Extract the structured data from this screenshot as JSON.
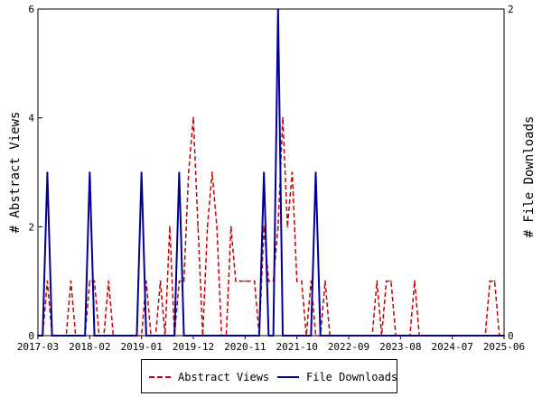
{
  "chart_data": {
    "type": "line",
    "x_tick_labels": [
      "2017-03",
      "2018-02",
      "2019-01",
      "2019-12",
      "2020-11",
      "2021-10",
      "2022-09",
      "2023-08",
      "2024-07",
      "2025-06"
    ],
    "x_range_months": [
      "2017-03",
      "2025-06"
    ],
    "left_axis": {
      "label": "# Abstract Views",
      "ticks": [
        "0",
        "2",
        "4",
        "6"
      ],
      "range": [
        0,
        6
      ]
    },
    "right_axis": {
      "label": "# File Downloads",
      "ticks": [
        "0",
        "2"
      ],
      "range": [
        0,
        2
      ]
    },
    "grid": false,
    "legend_position": "bottom",
    "series": [
      {
        "name": "Abstract Views",
        "axis": "left",
        "color": "#cc0000",
        "style": "dashed",
        "points": [
          [
            "2017-03",
            0
          ],
          [
            "2017-04",
            0
          ],
          [
            "2017-05",
            1
          ],
          [
            "2017-06",
            0
          ],
          [
            "2017-07",
            0
          ],
          [
            "2017-08",
            0
          ],
          [
            "2017-09",
            0
          ],
          [
            "2017-10",
            1
          ],
          [
            "2017-11",
            0
          ],
          [
            "2017-12",
            0
          ],
          [
            "2018-01",
            0
          ],
          [
            "2018-02",
            1
          ],
          [
            "2018-03",
            1
          ],
          [
            "2018-04",
            0
          ],
          [
            "2018-05",
            0
          ],
          [
            "2018-06",
            1
          ],
          [
            "2018-07",
            0
          ],
          [
            "2018-08",
            0
          ],
          [
            "2018-09",
            0
          ],
          [
            "2018-10",
            0
          ],
          [
            "2018-11",
            0
          ],
          [
            "2018-12",
            0
          ],
          [
            "2019-01",
            0
          ],
          [
            "2019-02",
            1
          ],
          [
            "2019-03",
            0
          ],
          [
            "2019-04",
            0
          ],
          [
            "2019-05",
            1
          ],
          [
            "2019-06",
            0
          ],
          [
            "2019-07",
            2
          ],
          [
            "2019-08",
            0
          ],
          [
            "2019-09",
            1
          ],
          [
            "2019-10",
            1
          ],
          [
            "2019-11",
            3
          ],
          [
            "2019-12",
            4
          ],
          [
            "2020-01",
            2
          ],
          [
            "2020-02",
            0
          ],
          [
            "2020-03",
            2
          ],
          [
            "2020-04",
            3
          ],
          [
            "2020-05",
            2
          ],
          [
            "2020-06",
            0
          ],
          [
            "2020-07",
            0
          ],
          [
            "2020-08",
            2
          ],
          [
            "2020-09",
            1
          ],
          [
            "2020-10",
            1
          ],
          [
            "2020-11",
            1
          ],
          [
            "2020-12",
            1
          ],
          [
            "2021-01",
            1
          ],
          [
            "2021-02",
            0
          ],
          [
            "2021-03",
            2
          ],
          [
            "2021-04",
            1
          ],
          [
            "2021-05",
            1
          ],
          [
            "2021-06",
            2
          ],
          [
            "2021-07",
            4
          ],
          [
            "2021-08",
            2
          ],
          [
            "2021-09",
            3
          ],
          [
            "2021-10",
            1
          ],
          [
            "2021-11",
            1
          ],
          [
            "2021-12",
            0
          ],
          [
            "2022-01",
            1
          ],
          [
            "2022-02",
            0
          ],
          [
            "2022-03",
            0
          ],
          [
            "2022-04",
            1
          ],
          [
            "2022-05",
            0
          ],
          [
            "2022-06",
            0
          ],
          [
            "2022-07",
            0
          ],
          [
            "2022-08",
            0
          ],
          [
            "2022-09",
            0
          ],
          [
            "2022-10",
            0
          ],
          [
            "2022-11",
            0
          ],
          [
            "2022-12",
            0
          ],
          [
            "2023-01",
            0
          ],
          [
            "2023-02",
            0
          ],
          [
            "2023-03",
            1
          ],
          [
            "2023-04",
            0
          ],
          [
            "2023-05",
            1
          ],
          [
            "2023-06",
            1
          ],
          [
            "2023-07",
            0
          ],
          [
            "2023-08",
            0
          ],
          [
            "2023-09",
            0
          ],
          [
            "2023-10",
            0
          ],
          [
            "2023-11",
            1
          ],
          [
            "2023-12",
            0
          ],
          [
            "2024-01",
            0
          ],
          [
            "2024-02",
            0
          ],
          [
            "2024-03",
            0
          ],
          [
            "2024-04",
            0
          ],
          [
            "2024-05",
            0
          ],
          [
            "2024-06",
            0
          ],
          [
            "2024-07",
            0
          ],
          [
            "2024-08",
            0
          ],
          [
            "2024-09",
            0
          ],
          [
            "2024-10",
            0
          ],
          [
            "2024-11",
            0
          ],
          [
            "2024-12",
            0
          ],
          [
            "2025-01",
            0
          ],
          [
            "2025-02",
            0
          ],
          [
            "2025-03",
            1
          ],
          [
            "2025-04",
            1
          ],
          [
            "2025-05",
            0
          ],
          [
            "2025-06",
            0
          ]
        ]
      },
      {
        "name": "File Downloads",
        "axis": "right",
        "color": "#000099",
        "style": "solid",
        "points": [
          [
            "2017-03",
            0
          ],
          [
            "2017-04",
            0
          ],
          [
            "2017-05",
            1
          ],
          [
            "2017-06",
            0
          ],
          [
            "2017-07",
            0
          ],
          [
            "2017-08",
            0
          ],
          [
            "2017-09",
            0
          ],
          [
            "2017-10",
            0
          ],
          [
            "2017-11",
            0
          ],
          [
            "2017-12",
            0
          ],
          [
            "2018-01",
            0
          ],
          [
            "2018-02",
            1
          ],
          [
            "2018-03",
            0
          ],
          [
            "2018-04",
            0
          ],
          [
            "2018-05",
            0
          ],
          [
            "2018-06",
            0
          ],
          [
            "2018-07",
            0
          ],
          [
            "2018-08",
            0
          ],
          [
            "2018-09",
            0
          ],
          [
            "2018-10",
            0
          ],
          [
            "2018-11",
            0
          ],
          [
            "2018-12",
            0
          ],
          [
            "2019-01",
            1
          ],
          [
            "2019-02",
            0
          ],
          [
            "2019-03",
            0
          ],
          [
            "2019-04",
            0
          ],
          [
            "2019-05",
            0
          ],
          [
            "2019-06",
            0
          ],
          [
            "2019-07",
            0
          ],
          [
            "2019-08",
            0
          ],
          [
            "2019-09",
            1
          ],
          [
            "2019-10",
            0
          ],
          [
            "2019-11",
            0
          ],
          [
            "2019-12",
            0
          ],
          [
            "2020-01",
            0
          ],
          [
            "2020-02",
            0
          ],
          [
            "2020-03",
            0
          ],
          [
            "2020-04",
            0
          ],
          [
            "2020-05",
            0
          ],
          [
            "2020-06",
            0
          ],
          [
            "2020-07",
            0
          ],
          [
            "2020-08",
            0
          ],
          [
            "2020-09",
            0
          ],
          [
            "2020-10",
            0
          ],
          [
            "2020-11",
            0
          ],
          [
            "2020-12",
            0
          ],
          [
            "2021-01",
            0
          ],
          [
            "2021-02",
            0
          ],
          [
            "2021-03",
            1
          ],
          [
            "2021-04",
            0
          ],
          [
            "2021-05",
            0
          ],
          [
            "2021-06",
            2
          ],
          [
            "2021-07",
            0
          ],
          [
            "2021-08",
            0
          ],
          [
            "2021-09",
            0
          ],
          [
            "2021-10",
            0
          ],
          [
            "2021-11",
            0
          ],
          [
            "2021-12",
            0
          ],
          [
            "2022-01",
            0
          ],
          [
            "2022-02",
            1
          ],
          [
            "2022-03",
            0
          ],
          [
            "2022-04",
            0
          ],
          [
            "2022-05",
            0
          ],
          [
            "2022-06",
            0
          ],
          [
            "2022-07",
            0
          ],
          [
            "2022-08",
            0
          ],
          [
            "2022-09",
            0
          ],
          [
            "2022-10",
            0
          ],
          [
            "2022-11",
            0
          ],
          [
            "2022-12",
            0
          ],
          [
            "2023-01",
            0
          ],
          [
            "2023-02",
            0
          ],
          [
            "2023-03",
            0
          ],
          [
            "2023-04",
            0
          ],
          [
            "2023-05",
            0
          ],
          [
            "2023-06",
            0
          ],
          [
            "2023-07",
            0
          ],
          [
            "2023-08",
            0
          ],
          [
            "2023-09",
            0
          ],
          [
            "2023-10",
            0
          ],
          [
            "2023-11",
            0
          ],
          [
            "2023-12",
            0
          ],
          [
            "2024-01",
            0
          ],
          [
            "2024-02",
            0
          ],
          [
            "2024-03",
            0
          ],
          [
            "2024-04",
            0
          ],
          [
            "2024-05",
            0
          ],
          [
            "2024-06",
            0
          ],
          [
            "2024-07",
            0
          ],
          [
            "2024-08",
            0
          ],
          [
            "2024-09",
            0
          ],
          [
            "2024-10",
            0
          ],
          [
            "2024-11",
            0
          ],
          [
            "2024-12",
            0
          ],
          [
            "2025-01",
            0
          ],
          [
            "2025-02",
            0
          ],
          [
            "2025-03",
            0
          ],
          [
            "2025-04",
            0
          ],
          [
            "2025-05",
            0
          ],
          [
            "2025-06",
            0
          ]
        ]
      }
    ]
  },
  "legend": {
    "abstract_views_label": "Abstract Views",
    "file_downloads_label": "File Downloads"
  }
}
